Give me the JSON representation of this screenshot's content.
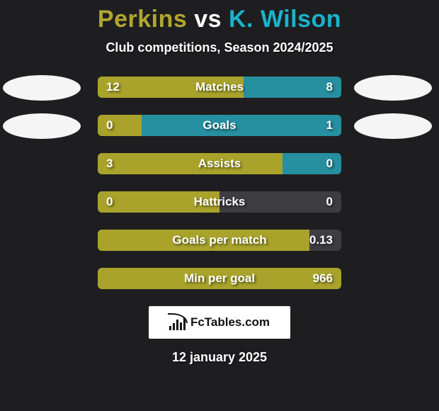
{
  "title": {
    "player1": "Perkins",
    "vs": "vs",
    "player2": "K. Wilson",
    "player1_color": "#b0a62f",
    "vs_color": "#ffffff",
    "player2_color": "#19b3c9"
  },
  "subtitle": "Club competitions, Season 2024/2025",
  "colors": {
    "bg": "#1e1e20",
    "track": "#3d3d42",
    "left_fill": "#a9a32b",
    "right_fill": "#268fa0",
    "oval": "#f5f5f5"
  },
  "rows": [
    {
      "name": "matches",
      "label": "Matches",
      "left_value": "12",
      "right_value": "8",
      "left_pct": 60,
      "right_pct": 40,
      "show_left_oval": true,
      "show_right_oval": true
    },
    {
      "name": "goals",
      "label": "Goals",
      "left_value": "0",
      "right_value": "1",
      "left_pct": 18,
      "right_pct": 82,
      "show_left_oval": true,
      "show_right_oval": true
    },
    {
      "name": "assists",
      "label": "Assists",
      "left_value": "3",
      "right_value": "0",
      "left_pct": 76,
      "right_pct": 24,
      "show_left_oval": false,
      "show_right_oval": false
    },
    {
      "name": "hattricks",
      "label": "Hattricks",
      "left_value": "0",
      "right_value": "0",
      "left_pct": 50,
      "right_pct": 0,
      "show_left_oval": false,
      "show_right_oval": false
    },
    {
      "name": "goals-per-match",
      "label": "Goals per match",
      "left_value": "",
      "right_value": "0.13",
      "left_pct": 87,
      "right_pct": 0,
      "show_left_oval": false,
      "show_right_oval": false
    },
    {
      "name": "min-per-goal",
      "label": "Min per goal",
      "left_value": "",
      "right_value": "966",
      "left_pct": 100,
      "right_pct": 0,
      "show_left_oval": false,
      "show_right_oval": false
    }
  ],
  "branding": "FcTables.com",
  "date": "12 january 2025"
}
